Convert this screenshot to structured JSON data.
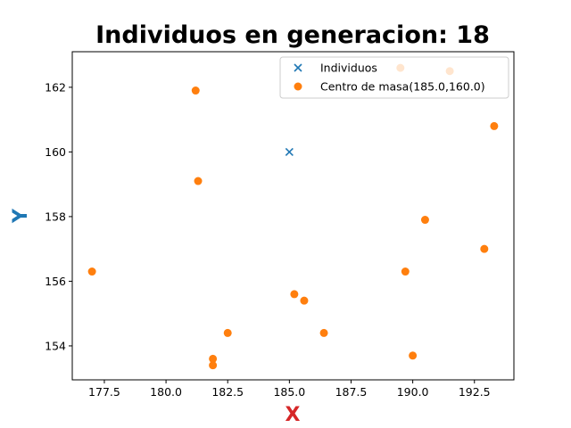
{
  "chart_data": {
    "type": "scatter",
    "title": "Individuos en generacion: 18",
    "xlabel": "X",
    "ylabel": "Y",
    "xlim": [
      176.2,
      194.1
    ],
    "ylim": [
      152.95,
      163.1
    ],
    "xticks": [
      177.5,
      180.0,
      182.5,
      185.0,
      187.5,
      190.0,
      192.5
    ],
    "xtick_labels": [
      "177.5",
      "180.0",
      "182.5",
      "185.0",
      "187.5",
      "190.0",
      "192.5"
    ],
    "yticks": [
      154,
      156,
      158,
      160,
      162
    ],
    "ytick_labels": [
      "154",
      "156",
      "158",
      "160",
      "162"
    ],
    "grid": false,
    "legend_position": "top-right",
    "colors": {
      "individuos": "#1f77b4",
      "centro": "#ff7f0e",
      "xlabel": "#d62728",
      "ylabel": "#1f77b4"
    },
    "series": [
      {
        "name": "Individuos",
        "marker": "x",
        "points": [
          [
            185.0,
            160.0
          ]
        ]
      },
      {
        "name": "Centro de masa(185.0,160.0)",
        "marker": "o",
        "points": [
          [
            177.0,
            156.3
          ],
          [
            181.2,
            161.9
          ],
          [
            181.3,
            159.1
          ],
          [
            181.9,
            153.6
          ],
          [
            181.9,
            153.4
          ],
          [
            182.5,
            154.4
          ],
          [
            185.2,
            155.6
          ],
          [
            185.6,
            155.4
          ],
          [
            186.4,
            154.4
          ],
          [
            189.5,
            162.6
          ],
          [
            189.7,
            156.3
          ],
          [
            190.0,
            153.7
          ],
          [
            190.5,
            157.9
          ],
          [
            191.5,
            162.5
          ],
          [
            192.9,
            157.0
          ],
          [
            193.3,
            160.8
          ]
        ]
      }
    ]
  }
}
